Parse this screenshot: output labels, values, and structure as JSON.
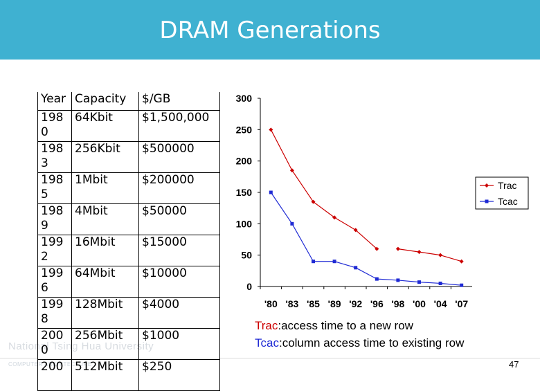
{
  "header": {
    "title": "DRAM Generations"
  },
  "table": {
    "headers": [
      "Year",
      "Capacity",
      "$/GB"
    ],
    "rows": [
      {
        "year": "198\n0",
        "capacity": "64Kbit",
        "cost": "$1,500,000"
      },
      {
        "year": "198\n3",
        "capacity": "256Kbit",
        "cost": "$500000"
      },
      {
        "year": "198\n5",
        "capacity": "1Mbit",
        "cost": "$200000"
      },
      {
        "year": "198\n9",
        "capacity": "4Mbit",
        "cost": "$50000"
      },
      {
        "year": "199\n2",
        "capacity": "16Mbit",
        "cost": "$15000"
      },
      {
        "year": "199\n6",
        "capacity": "64Mbit",
        "cost": "$10000"
      },
      {
        "year": "199\n8",
        "capacity": "128Mbit",
        "cost": "$4000"
      },
      {
        "year": "200\n0",
        "capacity": "256Mbit",
        "cost": "$1000"
      },
      {
        "year": "200",
        "capacity": "512Mbit",
        "cost": "$250"
      }
    ]
  },
  "chart_data": {
    "type": "line",
    "categories": [
      "'80",
      "'83",
      "'85",
      "'89",
      "'92",
      "'96",
      "'98",
      "'00",
      "'04",
      "'07"
    ],
    "series": [
      {
        "name": "Trac",
        "color": "#cc0000",
        "marker": "diamond",
        "values": [
          250,
          185,
          135,
          110,
          90,
          60,
          60,
          55,
          50,
          40
        ],
        "segment_breaks_after": [
          5
        ]
      },
      {
        "name": "Tcac",
        "color": "#1f2ad4",
        "marker": "square",
        "values": [
          150,
          100,
          40,
          40,
          30,
          12,
          10,
          7,
          5,
          2
        ]
      }
    ],
    "ylim": [
      0,
      300
    ],
    "yticks": [
      0,
      50,
      100,
      150,
      200,
      250,
      300
    ],
    "legend": "right",
    "grid": false
  },
  "captions": {
    "trac_term": "Trac",
    "trac_desc": ":access time to a new row",
    "tcac_term": "Tcac",
    "tcac_desc": ":column access time to existing row"
  },
  "footer": {
    "watermark": "National Tsing Hua University",
    "watermark_sub": "COMPUTER ARCHITECTURE",
    "page_number": "47"
  }
}
